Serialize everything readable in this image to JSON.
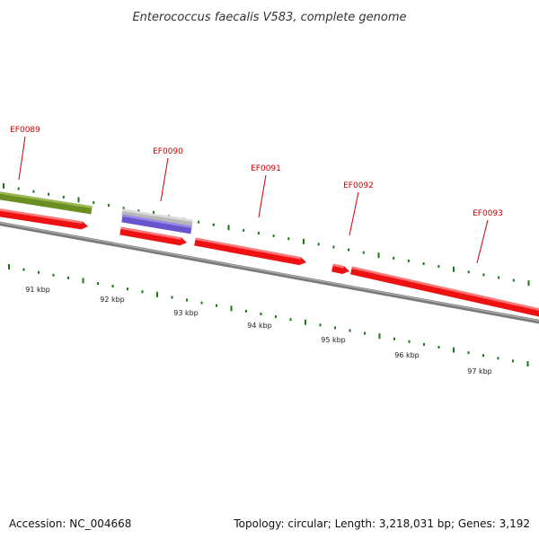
{
  "title": "Enterococcus faecalis V583, complete genome",
  "footer": {
    "accession": "Accession: NC_004668",
    "summary": "Topology: circular; Length: 3,218,031 bp; Genes: 3,192"
  },
  "colors": {
    "backbone": "#7a7a7a",
    "cds": "#ee1111",
    "cds_highlight": "#ff7777",
    "olive_feature": "#6b8e23",
    "gray_feature": "#b8b8b8",
    "blue_feature": "#6655cc",
    "gc_tick": "#1a7a1a",
    "label": "#cc0000"
  },
  "genes": [
    {
      "name": "EF0089"
    },
    {
      "name": "EF0090"
    },
    {
      "name": "EF0091"
    },
    {
      "name": "EF0092"
    },
    {
      "name": "EF0093"
    }
  ],
  "scale_ticks": [
    "91 kbp",
    "92 kbp",
    "93 kbp",
    "94 kbp",
    "95 kbp",
    "96 kbp",
    "97 kbp"
  ]
}
